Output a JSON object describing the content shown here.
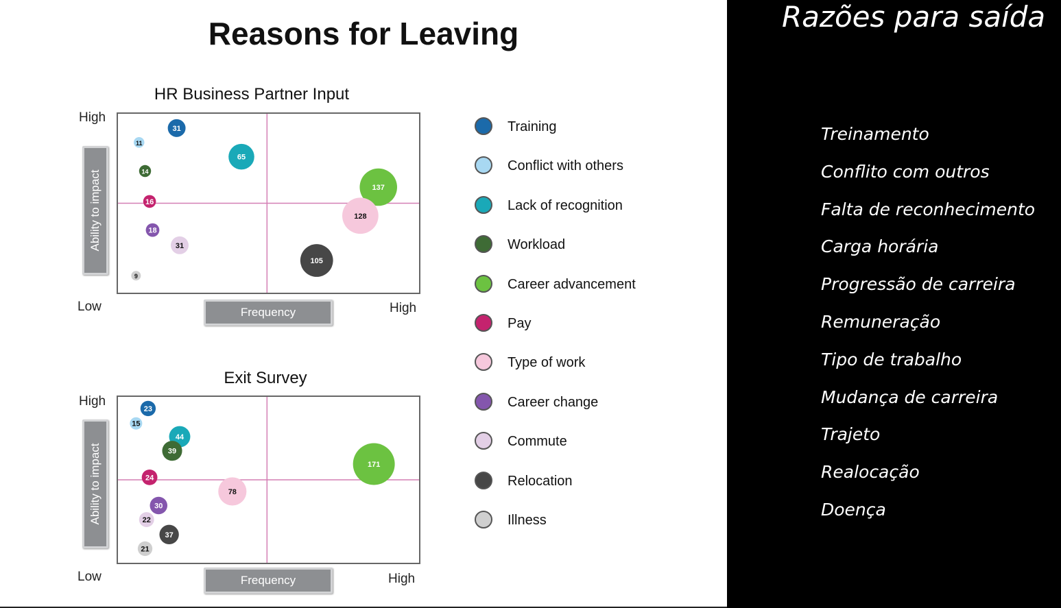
{
  "title": "Reasons for Leaving",
  "axis": {
    "high": "High",
    "low": "Low",
    "ylabel": "Ability to impact",
    "xlabel": "Frequency"
  },
  "legend": [
    {
      "label": "Training",
      "color": "#1b6aaa"
    },
    {
      "label": "Conflict with others",
      "color": "#a8d8f2"
    },
    {
      "label": "Lack of recognition",
      "color": "#1aa9b8"
    },
    {
      "label": "Workload",
      "color": "#3e6b35"
    },
    {
      "label": "Career advancement",
      "color": "#6cc241"
    },
    {
      "label": "Pay",
      "color": "#c4236e"
    },
    {
      "label": "Type of work",
      "color": "#f6c8dc"
    },
    {
      "label": "Career change",
      "color": "#8456ad"
    },
    {
      "label": "Commute",
      "color": "#e3cfe6"
    },
    {
      "label": "Relocation",
      "color": "#474747"
    },
    {
      "label": "Illness",
      "color": "#cfcfcf"
    }
  ],
  "chart_data": [
    {
      "type": "scatter",
      "title": "HR Business Partner Input",
      "xlabel": "Frequency",
      "ylabel": "Ability to impact",
      "xlim": [
        0,
        100
      ],
      "ylim": [
        0,
        100
      ],
      "quadrant_lines": {
        "x": 49.5,
        "y": 50
      },
      "points": [
        {
          "series": "Training",
          "x": 19.5,
          "y": 92,
          "size": 31
        },
        {
          "series": "Conflict with others",
          "x": 7,
          "y": 84,
          "size": 11
        },
        {
          "series": "Lack of recognition",
          "x": 41,
          "y": 76,
          "size": 65
        },
        {
          "series": "Workload",
          "x": 9,
          "y": 68,
          "size": 14
        },
        {
          "series": "Career advancement",
          "x": 86.5,
          "y": 59,
          "size": 137
        },
        {
          "series": "Pay",
          "x": 10.5,
          "y": 51,
          "size": 16
        },
        {
          "series": "Type of work",
          "x": 80.5,
          "y": 43,
          "size": 128
        },
        {
          "series": "Career change",
          "x": 11.5,
          "y": 35,
          "size": 18
        },
        {
          "series": "Commute",
          "x": 20.5,
          "y": 26.5,
          "size": 31
        },
        {
          "series": "Relocation",
          "x": 66,
          "y": 18,
          "size": 105
        },
        {
          "series": "Illness",
          "x": 6,
          "y": 9.5,
          "size": 9
        }
      ]
    },
    {
      "type": "scatter",
      "title": "Exit Survey",
      "xlabel": "Frequency",
      "ylabel": "Ability to impact",
      "xlim": [
        0,
        100
      ],
      "ylim": [
        0,
        100
      ],
      "quadrant_lines": {
        "x": 49.5,
        "y": 50
      },
      "points": [
        {
          "series": "Training",
          "x": 10,
          "y": 93,
          "size": 23
        },
        {
          "series": "Conflict with others",
          "x": 6,
          "y": 84,
          "size": 15
        },
        {
          "series": "Lack of recognition",
          "x": 20.5,
          "y": 76,
          "size": 44
        },
        {
          "series": "Workload",
          "x": 18,
          "y": 67.5,
          "size": 39
        },
        {
          "series": "Career advancement",
          "x": 85,
          "y": 59.5,
          "size": 171
        },
        {
          "series": "Pay",
          "x": 10.5,
          "y": 51.5,
          "size": 24
        },
        {
          "series": "Type of work",
          "x": 38,
          "y": 43,
          "size": 78
        },
        {
          "series": "Career change",
          "x": 13.5,
          "y": 34.5,
          "size": 30
        },
        {
          "series": "Commute",
          "x": 9.5,
          "y": 26,
          "size": 22
        },
        {
          "series": "Relocation",
          "x": 17,
          "y": 17,
          "size": 37
        },
        {
          "series": "Illness",
          "x": 9,
          "y": 8.5,
          "size": 21
        }
      ]
    }
  ],
  "translation": {
    "title": "Razões para saída",
    "items": [
      "Treinamento",
      "Conflito com outros",
      "Falta de reconhecimento",
      "Carga horária",
      "Progressão de carreira",
      "Remuneração",
      "Tipo de trabalho",
      "Mudança de carreira",
      "Trajeto",
      "Realocação",
      "Doença"
    ]
  }
}
